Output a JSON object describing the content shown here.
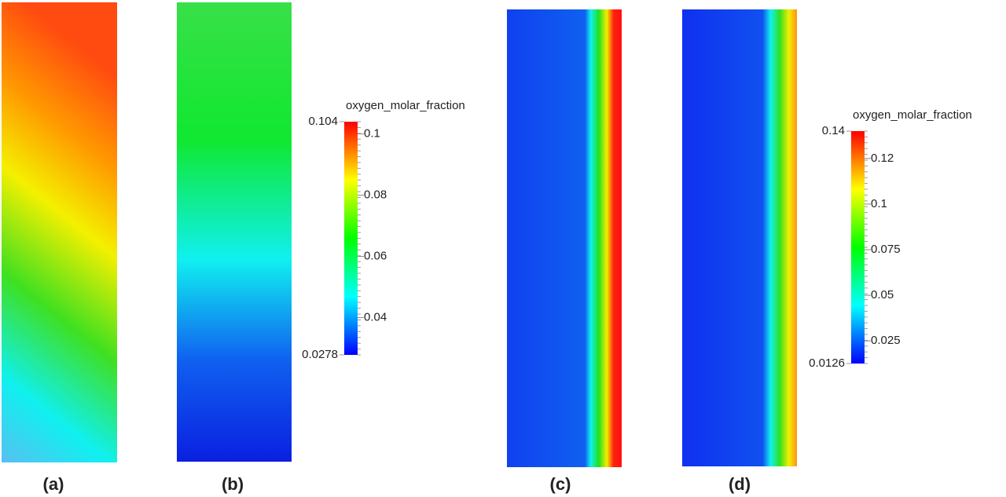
{
  "panels": [
    {
      "label": "(a)"
    },
    {
      "label": "(b)"
    },
    {
      "label": "(c)"
    },
    {
      "label": "(d)"
    }
  ],
  "colorbars": [
    {
      "title": "oxygen_molar_fraction",
      "range": [
        0.0278,
        0.104
      ],
      "ticks": [
        0.1,
        0.08,
        0.06,
        0.04
      ]
    },
    {
      "title": "oxygen_molar_fraction",
      "range": [
        0.0126,
        0.14
      ],
      "ticks": [
        {
          "value": 0.125,
          "label": "0.12"
        },
        0.1,
        0.075,
        0.05,
        0.025
      ]
    }
  ]
}
